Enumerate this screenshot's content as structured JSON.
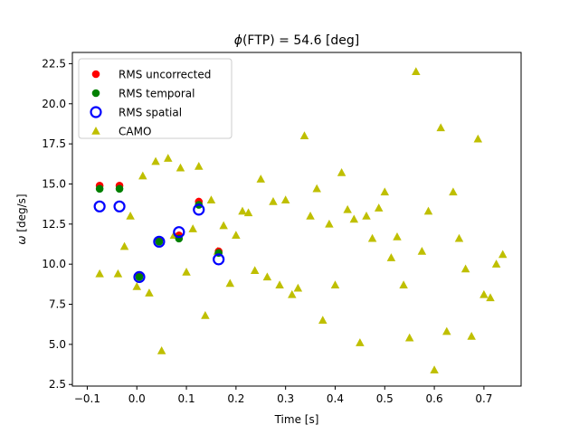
{
  "chart_data": {
    "type": "scatter",
    "title_prefix": "ϕ",
    "title_rest": "(FTP) = 54.6 [deg]",
    "xlabel": "Time [s]",
    "ylabel_symbol": "ω",
    "ylabel_unit": " [deg/s]",
    "xlim": [
      -0.13,
      0.775
    ],
    "ylim": [
      2.4,
      23.2
    ],
    "xticks": [
      -0.1,
      0.0,
      0.1,
      0.2,
      0.3,
      0.4,
      0.5,
      0.6,
      0.7
    ],
    "xtick_labels": [
      "−0.1",
      "0.0",
      "0.1",
      "0.2",
      "0.3",
      "0.4",
      "0.5",
      "0.6",
      "0.7"
    ],
    "yticks": [
      2.5,
      5.0,
      7.5,
      10.0,
      12.5,
      15.0,
      17.5,
      20.0,
      22.5
    ],
    "ytick_labels": [
      "2.5",
      "5.0",
      "7.5",
      "10.0",
      "12.5",
      "15.0",
      "17.5",
      "20.0",
      "22.5"
    ],
    "legend_position": "top-left",
    "colors": {
      "uncorrected": "#ff0000",
      "temporal": "#008000",
      "spatial": "#0000ff",
      "camo": "#bfbf00"
    },
    "series": [
      {
        "name": "RMS uncorrected",
        "marker": "circle",
        "color": "#ff0000",
        "points": [
          [
            -0.075,
            14.9
          ],
          [
            -0.035,
            14.9
          ],
          [
            0.005,
            9.3
          ],
          [
            0.045,
            11.5
          ],
          [
            0.085,
            11.8
          ],
          [
            0.125,
            13.9
          ],
          [
            0.165,
            10.8
          ]
        ]
      },
      {
        "name": "RMS temporal",
        "marker": "circle",
        "color": "#008000",
        "points": [
          [
            -0.075,
            14.7
          ],
          [
            -0.035,
            14.7
          ],
          [
            0.005,
            9.2
          ],
          [
            0.045,
            11.4
          ],
          [
            0.085,
            11.6
          ],
          [
            0.125,
            13.7
          ],
          [
            0.165,
            10.7
          ]
        ]
      },
      {
        "name": "RMS spatial",
        "marker": "open-circle",
        "color": "#0000ff",
        "points": [
          [
            -0.075,
            13.6
          ],
          [
            -0.035,
            13.6
          ],
          [
            0.005,
            9.2
          ],
          [
            0.045,
            11.4
          ],
          [
            0.085,
            12.0
          ],
          [
            0.125,
            13.4
          ],
          [
            0.165,
            10.3
          ]
        ]
      },
      {
        "name": "CAMO",
        "marker": "triangle",
        "color": "#bfbf00",
        "points": [
          [
            -0.075,
            9.4
          ],
          [
            -0.038,
            9.4
          ],
          [
            -0.025,
            11.1
          ],
          [
            -0.013,
            13.0
          ],
          [
            0.0,
            8.6
          ],
          [
            0.012,
            15.5
          ],
          [
            0.025,
            8.2
          ],
          [
            0.038,
            16.4
          ],
          [
            0.05,
            4.6
          ],
          [
            0.063,
            16.6
          ],
          [
            0.075,
            11.8
          ],
          [
            0.088,
            16.0
          ],
          [
            0.1,
            9.5
          ],
          [
            0.113,
            12.2
          ],
          [
            0.125,
            16.1
          ],
          [
            0.138,
            6.8
          ],
          [
            0.15,
            14.0
          ],
          [
            0.163,
            10.8
          ],
          [
            0.175,
            12.4
          ],
          [
            0.188,
            8.8
          ],
          [
            0.2,
            11.8
          ],
          [
            0.213,
            13.3
          ],
          [
            0.225,
            13.2
          ],
          [
            0.238,
            9.6
          ],
          [
            0.25,
            15.3
          ],
          [
            0.263,
            9.2
          ],
          [
            0.275,
            13.9
          ],
          [
            0.288,
            8.7
          ],
          [
            0.3,
            14.0
          ],
          [
            0.313,
            8.1
          ],
          [
            0.325,
            8.5
          ],
          [
            0.338,
            18.0
          ],
          [
            0.35,
            13.0
          ],
          [
            0.363,
            14.7
          ],
          [
            0.375,
            6.5
          ],
          [
            0.388,
            12.5
          ],
          [
            0.4,
            8.7
          ],
          [
            0.413,
            15.7
          ],
          [
            0.425,
            13.4
          ],
          [
            0.438,
            12.8
          ],
          [
            0.45,
            5.1
          ],
          [
            0.463,
            13.0
          ],
          [
            0.475,
            11.6
          ],
          [
            0.488,
            13.5
          ],
          [
            0.5,
            14.5
          ],
          [
            0.513,
            10.4
          ],
          [
            0.525,
            11.7
          ],
          [
            0.538,
            8.7
          ],
          [
            0.55,
            5.4
          ],
          [
            0.563,
            22.0
          ],
          [
            0.575,
            10.8
          ],
          [
            0.588,
            13.3
          ],
          [
            0.6,
            3.4
          ],
          [
            0.613,
            18.5
          ],
          [
            0.625,
            5.8
          ],
          [
            0.638,
            14.5
          ],
          [
            0.65,
            11.6
          ],
          [
            0.663,
            9.7
          ],
          [
            0.675,
            5.5
          ],
          [
            0.688,
            17.8
          ],
          [
            0.7,
            8.1
          ],
          [
            0.713,
            7.9
          ],
          [
            0.725,
            10.0
          ],
          [
            0.738,
            10.6
          ]
        ]
      }
    ]
  }
}
